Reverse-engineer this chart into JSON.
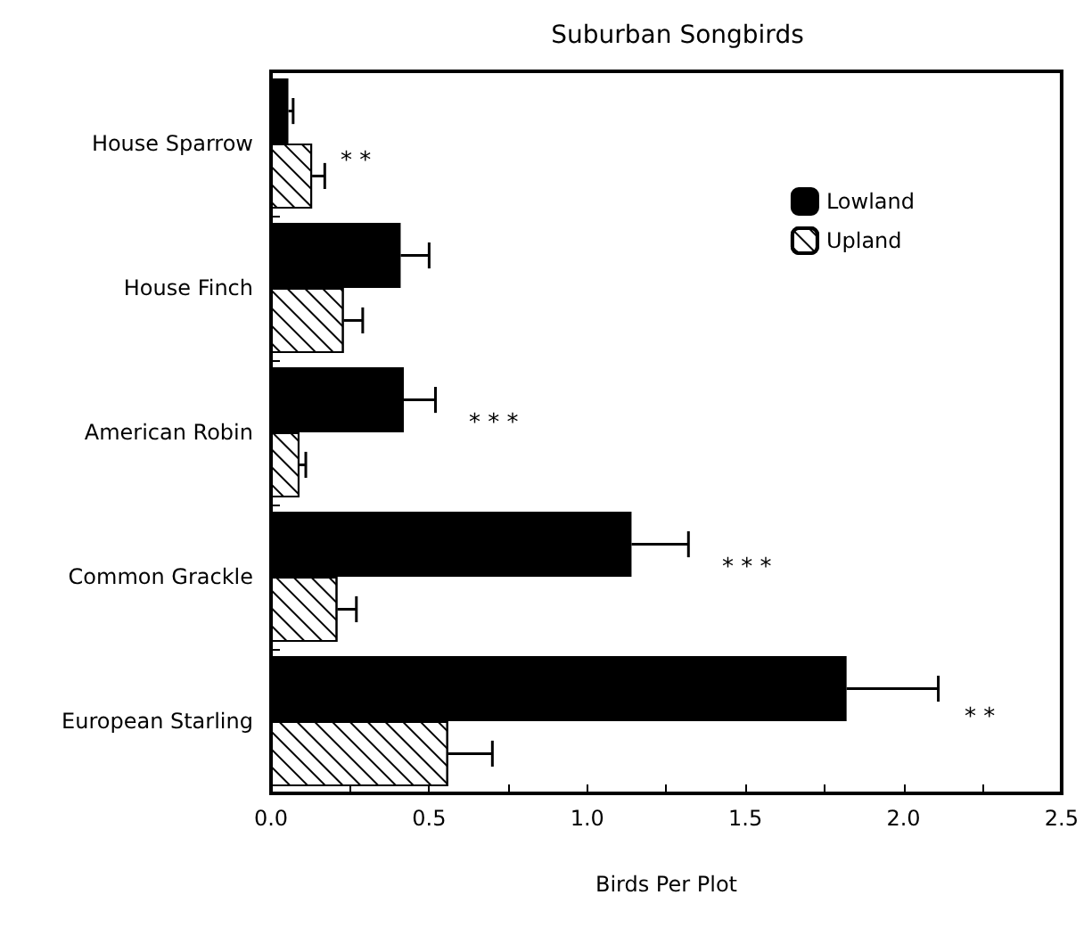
{
  "chart_data": {
    "type": "bar",
    "orientation": "horizontal",
    "title": "Suburban Songbirds",
    "xlabel": "Birds Per Plot",
    "categories": [
      "House Sparrow",
      "House Finch",
      "American Robin",
      "Common Grackle",
      "European Starling"
    ],
    "series": [
      {
        "name": "Lowland",
        "color": "#000000",
        "values": [
          0.055,
          0.41,
          0.42,
          1.14,
          1.82
        ],
        "errors": [
          [
            0.055,
            0.07
          ],
          [
            0.41,
            0.5
          ],
          [
            0.42,
            0.52
          ],
          [
            1.14,
            1.32
          ],
          [
            1.82,
            2.11
          ]
        ]
      },
      {
        "name": "Upland",
        "color": "#ffffff",
        "values": [
          0.13,
          0.23,
          0.09,
          0.21,
          0.56
        ],
        "errors": [
          [
            0.13,
            0.17
          ],
          [
            0.23,
            0.29
          ],
          [
            0.09,
            0.11
          ],
          [
            0.21,
            0.27
          ],
          [
            0.56,
            0.7
          ]
        ]
      }
    ],
    "xlim": [
      0,
      2.5
    ],
    "xticks": [
      {
        "value": 0,
        "label": "0.0"
      },
      {
        "value": 0.25,
        "label": null
      },
      {
        "value": 0.5,
        "label": "0.5"
      },
      {
        "value": 0.75,
        "label": null
      },
      {
        "value": 1,
        "label": "1.0"
      },
      {
        "value": 1.25,
        "label": null
      },
      {
        "value": 1.5,
        "label": "1.5"
      },
      {
        "value": 1.75,
        "label": null
      },
      {
        "value": 2,
        "label": "2.0"
      },
      {
        "value": 2.25,
        "label": null
      },
      {
        "value": 2.5,
        "label": "2.5"
      }
    ],
    "annotations": [
      "* *",
      "* * *",
      "* * *",
      "* *"
    ],
    "legend": "top right",
    "grid": false
  }
}
